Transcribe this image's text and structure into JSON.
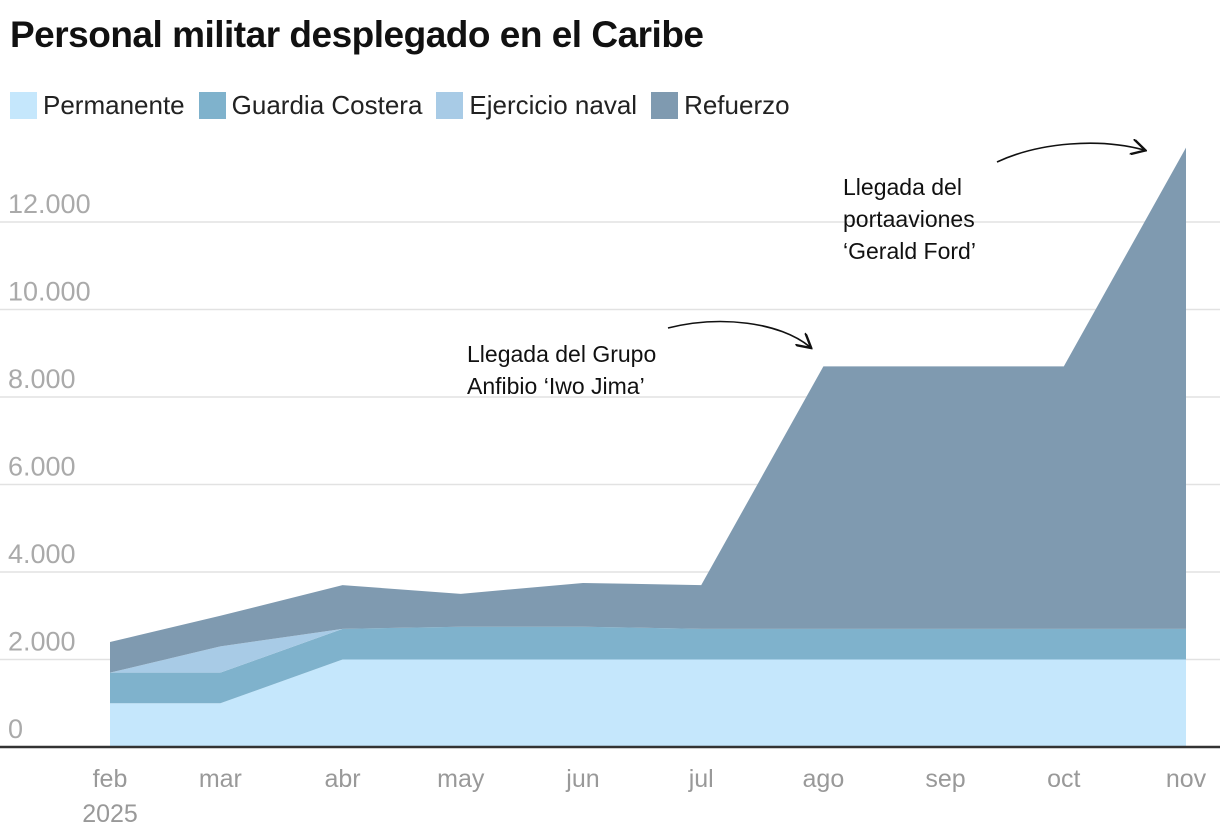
{
  "chart_data": {
    "type": "area",
    "stacked": true,
    "title": "Personal militar desplegado en el Caribe",
    "xlabel": "",
    "ylabel": "",
    "x": [
      "2025-02-01",
      "2025-03-01",
      "2025-04-01",
      "2025-05-01",
      "2025-06-01",
      "2025-07-01",
      "2025-08-01",
      "2025-09-01",
      "2025-10-01",
      "2025-11-01"
    ],
    "x_tick_labels": [
      "feb",
      "mar",
      "abr",
      "may",
      "jun",
      "jul",
      "ago",
      "sep",
      "oct",
      "nov"
    ],
    "x_year_label": "2025",
    "ylim": [
      0,
      14000
    ],
    "y_ticks": [
      0,
      2000,
      4000,
      6000,
      8000,
      10000,
      12000
    ],
    "y_tick_labels": [
      "0",
      "2.000",
      "4.000",
      "6.000",
      "8.000",
      "10.000",
      "12.000"
    ],
    "grid": true,
    "legend_position": "top-left",
    "series": [
      {
        "name": "Permanente",
        "color": "#c5e7fc",
        "values": [
          1000,
          1000,
          2000,
          2000,
          2000,
          2000,
          2000,
          2000,
          2000,
          2000
        ]
      },
      {
        "name": "Guardia Costera",
        "color": "#7fb2cc",
        "values": [
          700,
          700,
          700,
          750,
          750,
          700,
          700,
          700,
          700,
          700
        ]
      },
      {
        "name": "Ejercicio naval",
        "color": "#a8cbe6",
        "values": [
          0,
          600,
          0,
          0,
          0,
          0,
          0,
          0,
          0,
          0
        ]
      },
      {
        "name": "Refuerzo",
        "color": "#7f9ab0",
        "values": [
          700,
          700,
          1000,
          750,
          1000,
          1000,
          6000,
          6000,
          6000,
          11000
        ]
      }
    ],
    "annotations": [
      {
        "lines": [
          "Llegada del Grupo",
          "Anfibio ‘Iwo Jima’"
        ],
        "target_x": "2025-08-01"
      },
      {
        "lines": [
          "Llegada del",
          "portaaviones",
          "‘Gerald Ford’"
        ],
        "target_x": "2025-11-01"
      }
    ]
  }
}
